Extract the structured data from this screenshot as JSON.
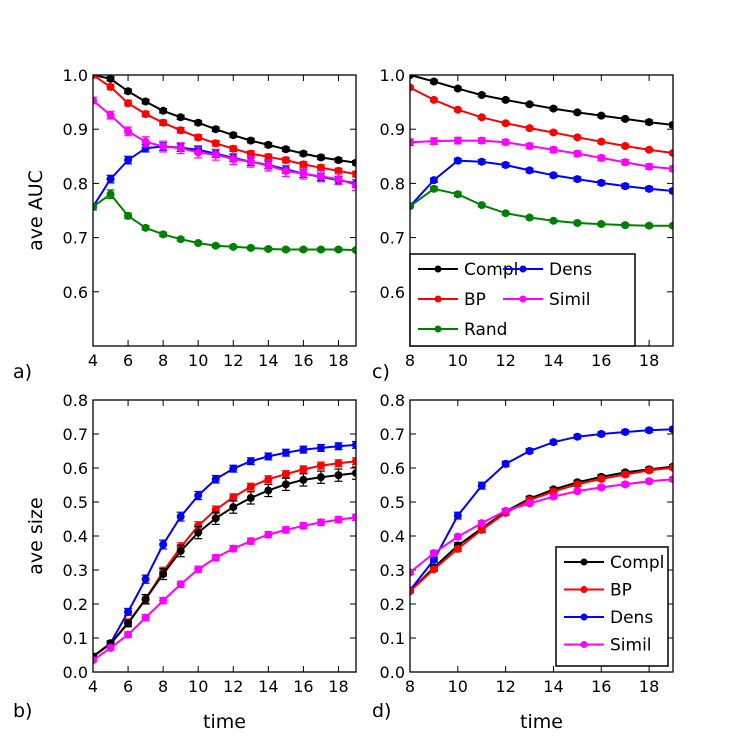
{
  "chart_data": [
    {
      "panel": "a",
      "panel_label": "a)",
      "type": "line",
      "ylabel": "ave AUC",
      "xlabel": "",
      "xlim": [
        4,
        19
      ],
      "ylim": [
        0.5,
        1.0
      ],
      "xticks": [
        4,
        6,
        8,
        10,
        12,
        14,
        16,
        18
      ],
      "yticks": [
        0.6,
        0.7,
        0.8,
        0.9,
        1.0
      ],
      "ytick_labels": [
        "0.6",
        "0.7",
        "0.8",
        "0.9",
        "1.0"
      ],
      "legend": null,
      "series": [
        {
          "name": "Compl",
          "color": "#000000",
          "x": [
            4,
            5,
            6,
            7,
            8,
            9,
            10,
            11,
            12,
            13,
            14,
            15,
            16,
            17,
            18,
            19
          ],
          "y": [
            1.0,
            0.993,
            0.97,
            0.951,
            0.934,
            0.922,
            0.912,
            0.9,
            0.889,
            0.879,
            0.871,
            0.863,
            0.855,
            0.848,
            0.843,
            0.838
          ],
          "err": [
            0.003,
            0.004,
            0.004,
            0.004,
            0.004,
            0.004,
            0.004,
            0.004,
            0.004,
            0.004,
            0.004,
            0.004,
            0.004,
            0.004,
            0.004,
            0.004
          ]
        },
        {
          "name": "BP",
          "color": "#ff0000",
          "x": [
            4,
            5,
            6,
            7,
            8,
            9,
            10,
            11,
            12,
            13,
            14,
            15,
            16,
            17,
            18,
            19
          ],
          "y": [
            1.0,
            0.978,
            0.948,
            0.928,
            0.912,
            0.898,
            0.885,
            0.874,
            0.864,
            0.855,
            0.849,
            0.843,
            0.835,
            0.829,
            0.823,
            0.817
          ],
          "err": [
            0.003,
            0.005,
            0.005,
            0.005,
            0.005,
            0.005,
            0.005,
            0.005,
            0.005,
            0.005,
            0.005,
            0.005,
            0.005,
            0.005,
            0.005,
            0.005
          ]
        },
        {
          "name": "Dens",
          "color": "#0000ff",
          "x": [
            4,
            5,
            6,
            7,
            8,
            9,
            10,
            11,
            12,
            13,
            14,
            15,
            16,
            17,
            18,
            19
          ],
          "y": [
            0.757,
            0.808,
            0.843,
            0.865,
            0.868,
            0.866,
            0.862,
            0.855,
            0.847,
            0.84,
            0.834,
            0.826,
            0.818,
            0.812,
            0.806,
            0.8
          ],
          "err": [
            0.006,
            0.007,
            0.007,
            0.007,
            0.007,
            0.007,
            0.007,
            0.007,
            0.007,
            0.007,
            0.007,
            0.007,
            0.007,
            0.007,
            0.007,
            0.007
          ]
        },
        {
          "name": "Simil",
          "color": "#ff00ff",
          "x": [
            4,
            5,
            6,
            7,
            8,
            9,
            10,
            11,
            12,
            13,
            14,
            15,
            16,
            17,
            18,
            19
          ],
          "y": [
            0.953,
            0.926,
            0.896,
            0.877,
            0.868,
            0.865,
            0.857,
            0.853,
            0.845,
            0.84,
            0.833,
            0.823,
            0.818,
            0.813,
            0.808,
            0.797
          ],
          "err": [
            0.006,
            0.007,
            0.008,
            0.009,
            0.01,
            0.01,
            0.01,
            0.01,
            0.01,
            0.01,
            0.01,
            0.01,
            0.01,
            0.01,
            0.01,
            0.01
          ]
        },
        {
          "name": "Rand",
          "color": "#008000",
          "x": [
            4,
            5,
            6,
            7,
            8,
            9,
            10,
            11,
            12,
            13,
            14,
            15,
            16,
            17,
            18,
            19
          ],
          "y": [
            0.757,
            0.78,
            0.74,
            0.718,
            0.706,
            0.697,
            0.69,
            0.685,
            0.683,
            0.681,
            0.679,
            0.678,
            0.678,
            0.678,
            0.678,
            0.677
          ],
          "err": [
            0.006,
            0.008,
            0.005,
            0.004,
            0.004,
            0.003,
            0.003,
            0.003,
            0.003,
            0.003,
            0.003,
            0.003,
            0.003,
            0.003,
            0.003,
            0.003
          ]
        }
      ]
    },
    {
      "panel": "c",
      "panel_label": "c)",
      "type": "line",
      "ylabel": "",
      "xlabel": "",
      "xlim": [
        8,
        19
      ],
      "ylim": [
        0.5,
        1.0
      ],
      "xticks": [
        8,
        10,
        12,
        14,
        16,
        18
      ],
      "yticks": [
        0.6,
        0.7,
        0.8,
        0.9,
        1.0
      ],
      "ytick_labels": [
        "0.6",
        "0.7",
        "0.8",
        "0.9",
        "1.0"
      ],
      "legend": {
        "placement": "lower-left",
        "columns": 2,
        "entries": [
          "Compl",
          "Dens",
          "BP",
          "Simil",
          "Rand"
        ]
      },
      "series": [
        {
          "name": "Compl",
          "color": "#000000",
          "x": [
            8,
            9,
            10,
            11,
            12,
            13,
            14,
            15,
            16,
            17,
            18,
            19
          ],
          "y": [
            1.0,
            0.988,
            0.975,
            0.963,
            0.954,
            0.946,
            0.938,
            0.931,
            0.925,
            0.919,
            0.913,
            0.908
          ],
          "err": [
            0.002,
            0.003,
            0.003,
            0.003,
            0.003,
            0.003,
            0.003,
            0.003,
            0.003,
            0.003,
            0.004,
            0.004
          ]
        },
        {
          "name": "BP",
          "color": "#ff0000",
          "x": [
            8,
            9,
            10,
            11,
            12,
            13,
            14,
            15,
            16,
            17,
            18,
            19
          ],
          "y": [
            0.977,
            0.954,
            0.936,
            0.922,
            0.911,
            0.902,
            0.894,
            0.885,
            0.877,
            0.869,
            0.862,
            0.856
          ],
          "err": [
            0.002,
            0.003,
            0.003,
            0.003,
            0.003,
            0.003,
            0.003,
            0.003,
            0.003,
            0.003,
            0.003,
            0.003
          ]
        },
        {
          "name": "Simil",
          "color": "#ff00ff",
          "x": [
            8,
            9,
            10,
            11,
            12,
            13,
            14,
            15,
            16,
            17,
            18,
            19
          ],
          "y": [
            0.876,
            0.878,
            0.879,
            0.879,
            0.876,
            0.869,
            0.862,
            0.855,
            0.847,
            0.839,
            0.831,
            0.827
          ],
          "err": [
            0.006,
            0.006,
            0.006,
            0.005,
            0.005,
            0.005,
            0.005,
            0.005,
            0.005,
            0.005,
            0.005,
            0.005
          ]
        },
        {
          "name": "Dens",
          "color": "#0000ff",
          "x": [
            8,
            9,
            10,
            11,
            12,
            13,
            14,
            15,
            16,
            17,
            18,
            19
          ],
          "y": [
            0.758,
            0.806,
            0.842,
            0.84,
            0.834,
            0.824,
            0.815,
            0.808,
            0.801,
            0.795,
            0.79,
            0.786
          ],
          "err": [
            0.003,
            0.004,
            0.004,
            0.004,
            0.004,
            0.004,
            0.004,
            0.004,
            0.004,
            0.004,
            0.004,
            0.004
          ]
        },
        {
          "name": "Rand",
          "color": "#008000",
          "x": [
            8,
            9,
            10,
            11,
            12,
            13,
            14,
            15,
            16,
            17,
            18,
            19
          ],
          "y": [
            0.758,
            0.79,
            0.78,
            0.76,
            0.745,
            0.737,
            0.731,
            0.727,
            0.725,
            0.723,
            0.722,
            0.722
          ],
          "err": [
            0.003,
            0.004,
            0.004,
            0.003,
            0.003,
            0.003,
            0.003,
            0.003,
            0.003,
            0.003,
            0.003,
            0.003
          ]
        }
      ]
    },
    {
      "panel": "b",
      "panel_label": "b)",
      "type": "line",
      "ylabel": "ave size",
      "xlabel": "time",
      "xlim": [
        4,
        19
      ],
      "ylim": [
        0.0,
        0.8
      ],
      "xticks": [
        4,
        6,
        8,
        10,
        12,
        14,
        16,
        18
      ],
      "yticks": [
        0.0,
        0.1,
        0.2,
        0.3,
        0.4,
        0.5,
        0.6,
        0.7,
        0.8
      ],
      "ytick_labels": [
        "0.0",
        "0.1",
        "0.2",
        "0.3",
        "0.4",
        "0.5",
        "0.6",
        "0.7",
        "0.8"
      ],
      "legend": null,
      "series": [
        {
          "name": "Dens",
          "color": "#0000ff",
          "x": [
            4,
            5,
            6,
            7,
            8,
            9,
            10,
            11,
            12,
            13,
            14,
            15,
            16,
            17,
            18,
            19
          ],
          "y": [
            0.045,
            0.085,
            0.177,
            0.273,
            0.375,
            0.457,
            0.519,
            0.567,
            0.598,
            0.62,
            0.634,
            0.645,
            0.654,
            0.659,
            0.664,
            0.668
          ],
          "err": [
            0.005,
            0.007,
            0.01,
            0.012,
            0.013,
            0.013,
            0.012,
            0.011,
            0.01,
            0.01,
            0.01,
            0.01,
            0.01,
            0.01,
            0.01,
            0.01
          ]
        },
        {
          "name": "BP",
          "color": "#ff0000",
          "x": [
            4,
            5,
            6,
            7,
            8,
            9,
            10,
            11,
            12,
            13,
            14,
            15,
            16,
            17,
            18,
            19
          ],
          "y": [
            0.046,
            0.083,
            0.146,
            0.215,
            0.295,
            0.367,
            0.43,
            0.477,
            0.514,
            0.545,
            0.567,
            0.582,
            0.596,
            0.607,
            0.614,
            0.62
          ],
          "err": [
            0.005,
            0.007,
            0.01,
            0.012,
            0.013,
            0.013,
            0.012,
            0.011,
            0.01,
            0.01,
            0.01,
            0.01,
            0.01,
            0.01,
            0.01,
            0.01
          ]
        },
        {
          "name": "Compl",
          "color": "#000000",
          "x": [
            4,
            5,
            6,
            7,
            8,
            9,
            10,
            11,
            12,
            13,
            14,
            15,
            16,
            17,
            18,
            19
          ],
          "y": [
            0.046,
            0.083,
            0.143,
            0.214,
            0.288,
            0.356,
            0.41,
            0.452,
            0.485,
            0.512,
            0.534,
            0.552,
            0.565,
            0.573,
            0.579,
            0.585
          ],
          "err": [
            0.005,
            0.007,
            0.01,
            0.014,
            0.016,
            0.017,
            0.018,
            0.018,
            0.018,
            0.018,
            0.018,
            0.018,
            0.018,
            0.018,
            0.018,
            0.018
          ]
        },
        {
          "name": "Simil",
          "color": "#ff00ff",
          "x": [
            4,
            5,
            6,
            7,
            8,
            9,
            10,
            11,
            12,
            13,
            14,
            15,
            16,
            17,
            18,
            19
          ],
          "y": [
            0.035,
            0.071,
            0.11,
            0.16,
            0.21,
            0.258,
            0.302,
            0.336,
            0.363,
            0.385,
            0.404,
            0.418,
            0.43,
            0.44,
            0.448,
            0.455
          ],
          "err": [
            0.005,
            0.006,
            0.008,
            0.009,
            0.009,
            0.009,
            0.009,
            0.009,
            0.009,
            0.009,
            0.009,
            0.009,
            0.009,
            0.009,
            0.009,
            0.009
          ]
        }
      ]
    },
    {
      "panel": "d",
      "panel_label": "d)",
      "type": "line",
      "ylabel": "",
      "xlabel": "time",
      "xlim": [
        8,
        19
      ],
      "ylim": [
        0.0,
        0.8
      ],
      "xticks": [
        8,
        10,
        12,
        14,
        16,
        18
      ],
      "yticks": [
        0.0,
        0.1,
        0.2,
        0.3,
        0.4,
        0.5,
        0.6,
        0.7,
        0.8
      ],
      "ytick_labels": [
        "0.0",
        "0.1",
        "0.2",
        "0.3",
        "0.4",
        "0.5",
        "0.6",
        "0.7",
        "0.8"
      ],
      "legend": {
        "placement": "lower-right",
        "columns": 1,
        "entries": [
          "Compl",
          "BP",
          "Dens",
          "Simil"
        ]
      },
      "series": [
        {
          "name": "Dens",
          "color": "#0000ff",
          "x": [
            8,
            9,
            10,
            11,
            12,
            13,
            14,
            15,
            16,
            17,
            18,
            19
          ],
          "y": [
            0.24,
            0.33,
            0.46,
            0.548,
            0.612,
            0.65,
            0.676,
            0.692,
            0.7,
            0.706,
            0.711,
            0.714
          ],
          "err": [
            0.005,
            0.007,
            0.01,
            0.01,
            0.008,
            0.007,
            0.006,
            0.006,
            0.006,
            0.006,
            0.006,
            0.006
          ]
        },
        {
          "name": "Compl",
          "color": "#000000",
          "x": [
            8,
            9,
            10,
            11,
            12,
            13,
            14,
            15,
            16,
            17,
            18,
            19
          ],
          "y": [
            0.238,
            0.307,
            0.372,
            0.422,
            0.472,
            0.51,
            0.537,
            0.558,
            0.574,
            0.587,
            0.596,
            0.604
          ],
          "err": [
            0.005,
            0.007,
            0.009,
            0.009,
            0.008,
            0.007,
            0.006,
            0.006,
            0.006,
            0.006,
            0.006,
            0.006
          ]
        },
        {
          "name": "BP",
          "color": "#ff0000",
          "x": [
            8,
            9,
            10,
            11,
            12,
            13,
            14,
            15,
            16,
            17,
            18,
            19
          ],
          "y": [
            0.238,
            0.302,
            0.362,
            0.418,
            0.468,
            0.506,
            0.531,
            0.552,
            0.568,
            0.581,
            0.593,
            0.601
          ],
          "err": [
            0.005,
            0.006,
            0.008,
            0.008,
            0.007,
            0.007,
            0.006,
            0.006,
            0.006,
            0.006,
            0.006,
            0.006
          ]
        },
        {
          "name": "Simil",
          "color": "#ff00ff",
          "x": [
            8,
            9,
            10,
            11,
            12,
            13,
            14,
            15,
            16,
            17,
            18,
            19
          ],
          "y": [
            0.293,
            0.35,
            0.398,
            0.438,
            0.474,
            0.496,
            0.516,
            0.532,
            0.543,
            0.552,
            0.561,
            0.567
          ],
          "err": [
            0.006,
            0.007,
            0.007,
            0.007,
            0.006,
            0.006,
            0.006,
            0.006,
            0.006,
            0.006,
            0.006,
            0.006
          ]
        }
      ]
    }
  ]
}
